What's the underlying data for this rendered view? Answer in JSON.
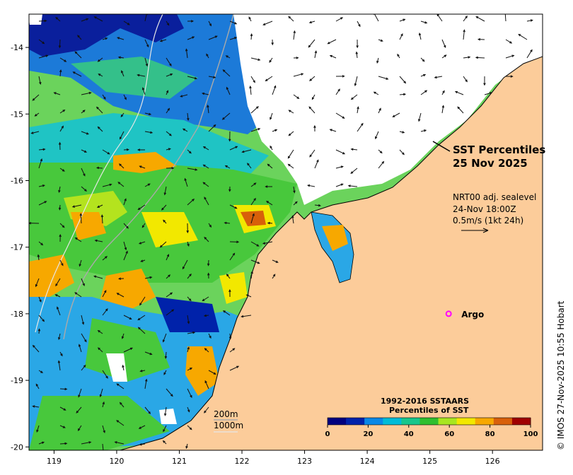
{
  "map": {
    "title_line1": "SST Percentiles",
    "title_line2": "25 Nov 2025",
    "current_info": {
      "line1": "NRT00 adj. sealevel",
      "line2": "24-Nov 18:00Z",
      "line3": "0.5m/s (1kt 24h)"
    },
    "argo": {
      "label": "Argo",
      "marker_color": "#ff00ff",
      "lon": 125.3,
      "lat": -18.0
    },
    "bathymetry_legend": [
      "200m",
      "1000m"
    ],
    "colorbar": {
      "title_line1": "1992-2016 SSTAARS",
      "title_line2": "Percentiles of SST",
      "colors": [
        "#00007f",
        "#0022aa",
        "#0a88e6",
        "#00bcd8",
        "#18c68c",
        "#2fbf2f",
        "#a8e620",
        "#f2e800",
        "#f7a800",
        "#d8600a",
        "#a00000"
      ],
      "ticks": [
        "0",
        "20",
        "40",
        "60",
        "80",
        "100"
      ]
    },
    "credit": "© IMOS 27-Nov-2025 10:55 Hobart",
    "x_axis": {
      "ticks": [
        "119",
        "120",
        "121",
        "122",
        "123",
        "124",
        "125",
        "126"
      ],
      "range": [
        118.6,
        126.8
      ]
    },
    "y_axis": {
      "ticks": [
        "-14",
        "-15",
        "-16",
        "-17",
        "-18",
        "-19",
        "-20"
      ],
      "range": [
        -20.05,
        -13.5
      ]
    },
    "colors": {
      "land": "#fccc9a",
      "no_data": "#ffffff",
      "coastline": "#000000"
    }
  }
}
